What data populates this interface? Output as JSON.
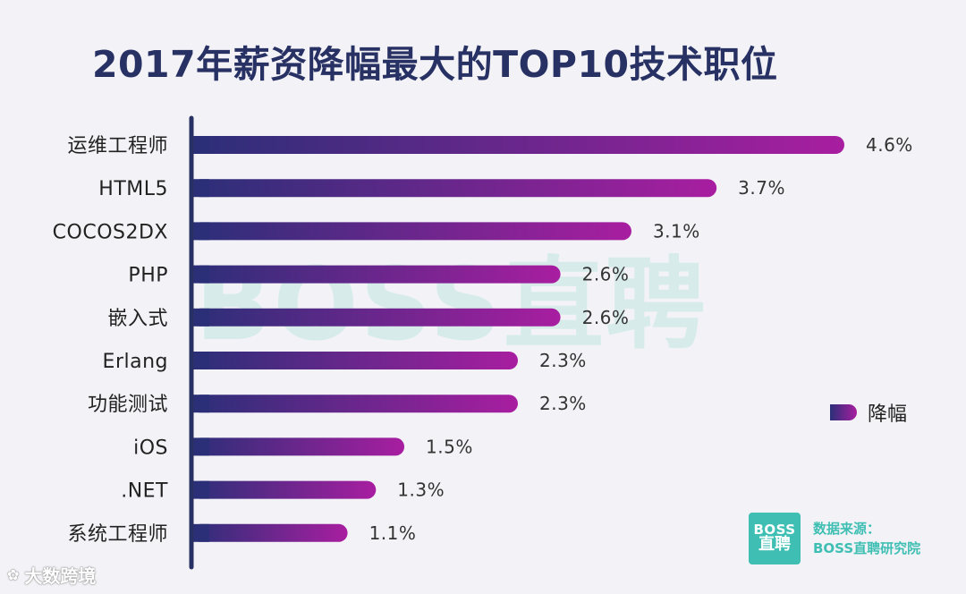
{
  "title": "2017年薪资降幅最大的TOP10技术职位",
  "watermark": "BOSS直聘",
  "legend": {
    "label": "降幅",
    "colors": [
      "#2b2f78",
      "#a81ea0"
    ]
  },
  "source": {
    "logo_line1": "BOSS",
    "logo_line2": "直聘",
    "line1": "数据来源：",
    "line2": "BOSS直聘研究院"
  },
  "brand": {
    "icon": "wechat-logo-icon",
    "text": "大数跨境"
  },
  "chart_data": {
    "type": "bar",
    "orientation": "horizontal",
    "title": "2017年薪资降幅最大的TOP10技术职位",
    "categories": [
      "运维工程师",
      "HTML5",
      "COCOS2DX",
      "PHP",
      "嵌入式",
      "Erlang",
      "功能测试",
      "iOS",
      ".NET",
      "系统工程师"
    ],
    "series": [
      {
        "name": "降幅",
        "values": [
          4.6,
          3.7,
          3.1,
          2.6,
          2.6,
          2.3,
          2.3,
          1.5,
          1.3,
          1.1
        ]
      }
    ],
    "value_labels": [
      "4.6%",
      "3.7%",
      "3.1%",
      "2.6%",
      "2.6%",
      "2.3%",
      "2.3%",
      "1.5%",
      "1.3%",
      "1.1%"
    ],
    "unit": "%",
    "xlim": [
      0,
      4.6
    ],
    "grid": false,
    "legend_position": "right"
  }
}
